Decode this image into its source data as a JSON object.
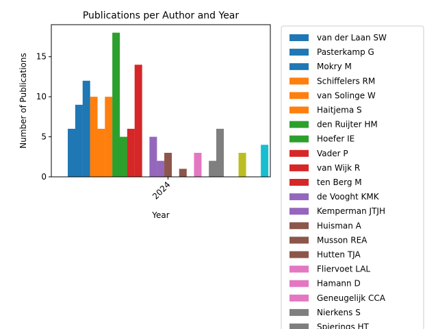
{
  "chart_data": {
    "type": "bar",
    "title": "Publications per Author and Year",
    "xlabel": "Year",
    "ylabel": "Number of Publications",
    "categories": [
      "2024"
    ],
    "ylim": [
      0,
      19
    ],
    "yticks": [
      0,
      5,
      10,
      15
    ],
    "legend_position": "outside-right",
    "series": [
      {
        "name": "van der Laan SW",
        "values": [
          6
        ],
        "color": "#1f77b4"
      },
      {
        "name": "Pasterkamp G",
        "values": [
          9
        ],
        "color": "#1f77b4"
      },
      {
        "name": "Mokry M",
        "values": [
          12
        ],
        "color": "#1f77b4"
      },
      {
        "name": "Schiffelers RM",
        "values": [
          10
        ],
        "color": "#ff7f0e"
      },
      {
        "name": "van Solinge W",
        "values": [
          6
        ],
        "color": "#ff7f0e"
      },
      {
        "name": "Haitjema S",
        "values": [
          10
        ],
        "color": "#ff7f0e"
      },
      {
        "name": "den Ruijter HM",
        "values": [
          18
        ],
        "color": "#2ca02c"
      },
      {
        "name": "Hoefer IE",
        "values": [
          5
        ],
        "color": "#2ca02c"
      },
      {
        "name": "Vader P",
        "values": [
          6
        ],
        "color": "#d62728"
      },
      {
        "name": "van Wijk R",
        "values": [
          14
        ],
        "color": "#d62728"
      },
      {
        "name": "ten Berg M",
        "values": [
          0
        ],
        "color": "#d62728"
      },
      {
        "name": "de Vooght KMK",
        "values": [
          5
        ],
        "color": "#9467bd"
      },
      {
        "name": "Kemperman JTJH",
        "values": [
          2
        ],
        "color": "#9467bd"
      },
      {
        "name": "Huisman A",
        "values": [
          3
        ],
        "color": "#8c564b"
      },
      {
        "name": "Musson REA",
        "values": [
          0
        ],
        "color": "#8c564b"
      },
      {
        "name": "Hutten TJA",
        "values": [
          1
        ],
        "color": "#8c564b"
      },
      {
        "name": "Fliervoet LAL",
        "values": [
          0
        ],
        "color": "#e377c2"
      },
      {
        "name": "Hamann D",
        "values": [
          3
        ],
        "color": "#e377c2"
      },
      {
        "name": "Geneugelijk CCA",
        "values": [
          0
        ],
        "color": "#e377c2"
      },
      {
        "name": "Nierkens S",
        "values": [
          2
        ],
        "color": "#7f7f7f"
      },
      {
        "name": "Spierings HT",
        "values": [
          6
        ],
        "color": "#7f7f7f"
      },
      {
        "name": "",
        "values": [
          0
        ],
        "color": "#7f7f7f"
      },
      {
        "name": "",
        "values": [
          0
        ],
        "color": "#bcbd22"
      },
      {
        "name": "",
        "values": [
          3
        ],
        "color": "#bcbd22"
      },
      {
        "name": "",
        "values": [
          0
        ],
        "color": "#bcbd22"
      },
      {
        "name": "",
        "values": [
          0
        ],
        "color": "#17becf"
      },
      {
        "name": "",
        "values": [
          4
        ],
        "color": "#17becf"
      }
    ]
  }
}
